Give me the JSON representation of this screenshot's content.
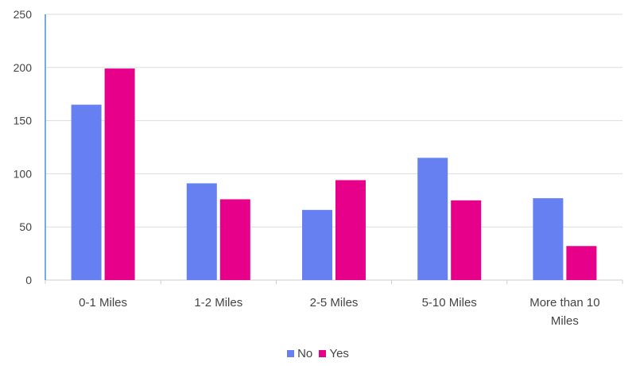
{
  "chart_data": {
    "type": "bar",
    "categories": [
      "0-1 Miles",
      "1-2 Miles",
      "2-5 Miles",
      "5-10 Miles",
      "More than 10 Miles"
    ],
    "category_lines": [
      [
        "0-1 Miles"
      ],
      [
        "1-2 Miles"
      ],
      [
        "2-5 Miles"
      ],
      [
        "5-10 Miles"
      ],
      [
        "More than 10",
        "Miles"
      ]
    ],
    "series": [
      {
        "name": "No",
        "color": "#6680f2",
        "values": [
          165,
          91,
          66,
          115,
          77
        ]
      },
      {
        "name": "Yes",
        "color": "#e6008a",
        "values": [
          199,
          76,
          94,
          75,
          32
        ]
      }
    ],
    "ylim": [
      0,
      250
    ],
    "yticks": [
      0,
      50,
      100,
      150,
      200,
      250
    ],
    "grid": true,
    "legend_position": "bottom",
    "axis_color": "#4a90d9",
    "grid_color": "#dddddd"
  }
}
